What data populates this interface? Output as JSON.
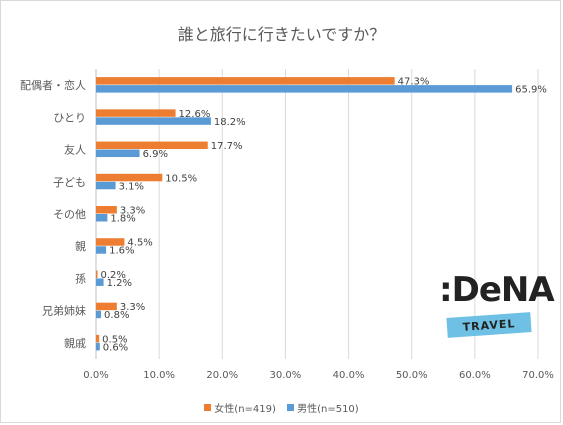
{
  "logo": {
    "brand": ":DeNA",
    "sub": "TRAVEL"
  },
  "chart_data": {
    "type": "bar",
    "orientation": "horizontal",
    "title": "誰と旅行に行きたいですか？",
    "categories": [
      "配偶者・恋人",
      "ひとり",
      "友人",
      "子ども",
      "その他",
      "親",
      "孫",
      "兄弟姉妹",
      "親戚"
    ],
    "series": [
      {
        "name": "女性(n=419)",
        "color": "#ed7d31",
        "values": [
          47.3,
          12.6,
          17.7,
          10.5,
          3.3,
          4.5,
          0.2,
          3.3,
          0.5
        ]
      },
      {
        "name": "男性(n=510)",
        "color": "#5b9bd5",
        "values": [
          65.9,
          18.2,
          6.9,
          3.1,
          1.8,
          1.6,
          1.2,
          0.8,
          0.6
        ]
      }
    ],
    "xlim": [
      0,
      70
    ],
    "x_ticks": [
      "0.0%",
      "10.0%",
      "20.0%",
      "30.0%",
      "40.0%",
      "50.0%",
      "60.0%",
      "70.0%"
    ],
    "value_suffix": "%",
    "grid": true,
    "legend_position": "bottom"
  }
}
